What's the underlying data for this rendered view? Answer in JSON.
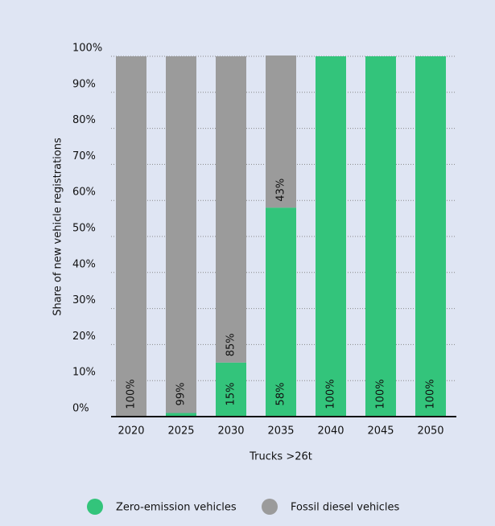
{
  "chart_data": {
    "type": "stacked_bar",
    "categories": [
      "2020",
      "2025",
      "2030",
      "2035",
      "2040",
      "2045",
      "2050"
    ],
    "series": [
      {
        "name": "Zero-emission vehicles",
        "color": "#33c47b",
        "values": [
          0,
          1,
          15,
          58,
          100,
          100,
          100
        ],
        "value_labels": [
          null,
          null,
          "15%",
          "58%",
          "100%",
          "100%",
          "100%"
        ]
      },
      {
        "name": "Fossil diesel vehicles",
        "color": "#9b9b9b",
        "values": [
          100,
          99,
          85,
          43,
          0,
          0,
          0
        ],
        "value_labels": [
          "100%",
          "99%",
          "85%",
          "43%",
          null,
          null,
          null
        ]
      }
    ],
    "y_label": "Share of new vehicle registrations",
    "x_label": "Trucks >26t",
    "ylim": [
      0,
      100
    ],
    "yticks": [
      {
        "value": 0,
        "label": "0%"
      },
      {
        "value": 10,
        "label": "10%"
      },
      {
        "value": 20,
        "label": "20%"
      },
      {
        "value": 30,
        "label": "30%"
      },
      {
        "value": 40,
        "label": "40%"
      },
      {
        "value": 50,
        "label": "50%"
      },
      {
        "value": 60,
        "label": "60%"
      },
      {
        "value": 70,
        "label": "70%"
      },
      {
        "value": 80,
        "label": "80%"
      },
      {
        "value": 90,
        "label": "90%"
      },
      {
        "value": 100,
        "label": "100%"
      }
    ],
    "grid": true,
    "legend": "bottom"
  }
}
